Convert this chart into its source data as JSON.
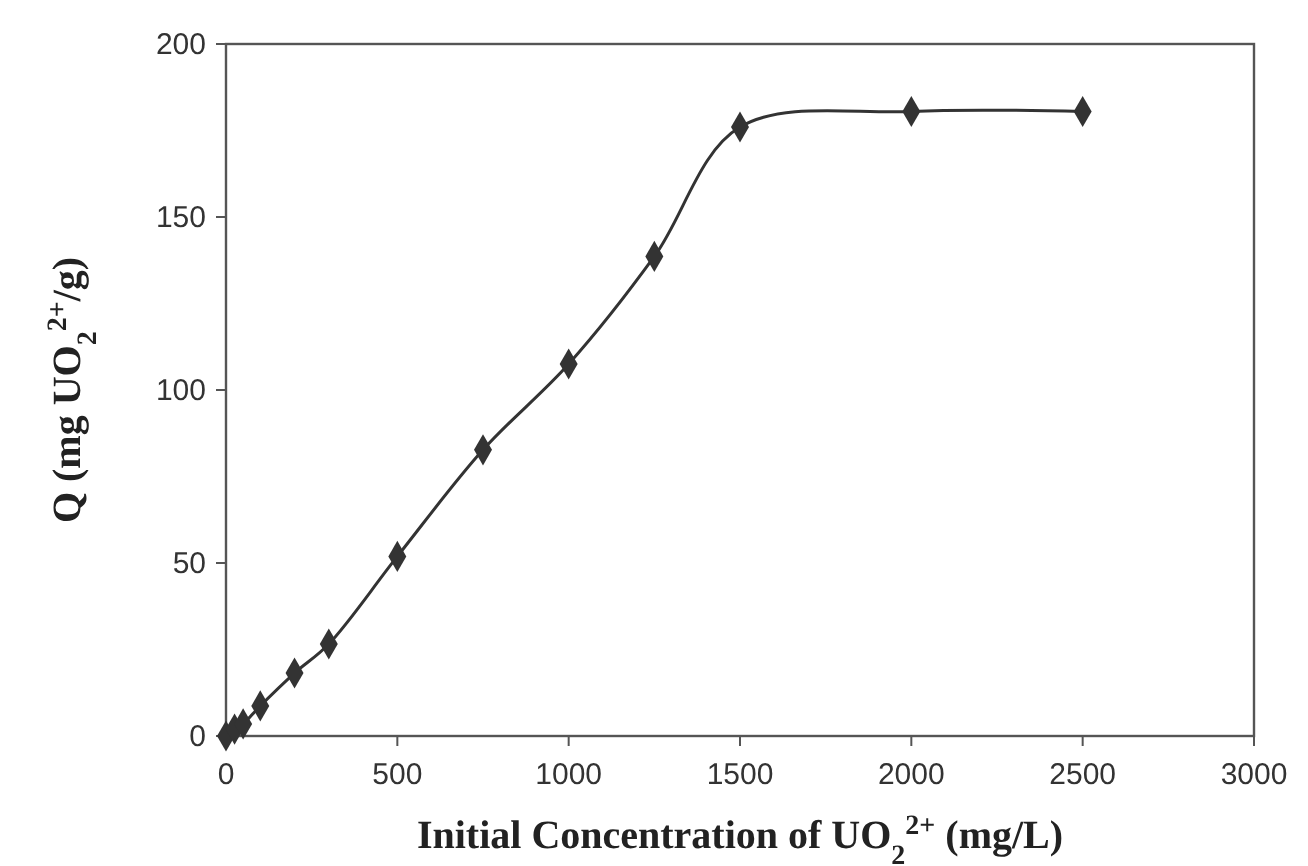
{
  "chart_data": {
    "type": "line",
    "xlabel": "Initial Concentration of UO$_{2}$$^{2+}$ (mg/L)",
    "ylabel": "Q (mg UO$_{2}$$^{2+}$/g)",
    "x": [
      0,
      25,
      50,
      100,
      200,
      300,
      500,
      750,
      1000,
      1250,
      1500,
      2000,
      2500
    ],
    "series": [
      {
        "color": "#333333",
        "values": [
          0,
          2,
          3.5,
          8.7,
          18.2,
          26.6,
          51.9,
          82.7,
          107.5,
          138.6,
          176,
          180.5,
          180.5
        ]
      }
    ],
    "xlim": [
      0,
      3000
    ],
    "xticks": [
      0,
      500,
      1000,
      1500,
      2000,
      2500,
      3000
    ],
    "ylim": [
      0,
      200
    ],
    "yticks": [
      0,
      50,
      100,
      150,
      200
    ],
    "marker": "diamond",
    "line_style": "solid"
  }
}
